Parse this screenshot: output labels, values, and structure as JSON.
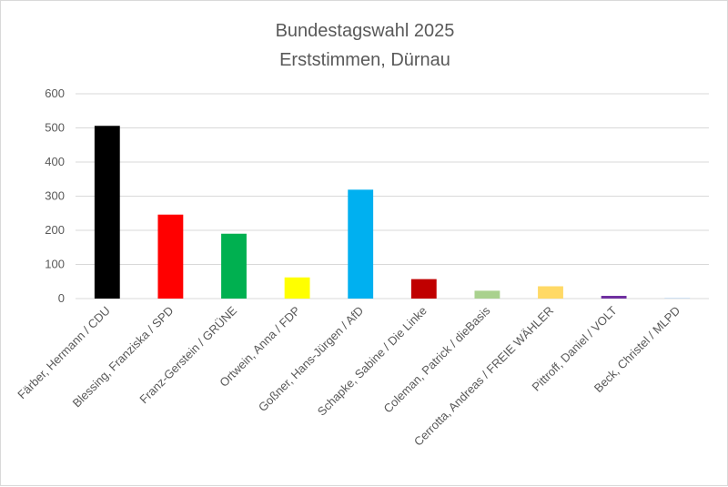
{
  "chart_data": {
    "type": "bar",
    "title": "Bundestagswahl 2025",
    "subtitle": "Erststimmen, Dürnau",
    "xlabel": "",
    "ylabel": "",
    "ylim": [
      0,
      600
    ],
    "yticks": [
      "0",
      "100",
      "200",
      "300",
      "400",
      "500",
      "600"
    ],
    "grid": true,
    "legend": "none",
    "categories": [
      "Färber, Hermann / CDU",
      "Blessing, Franziska / SPD",
      "Franz-Gerstein / GRÜNE",
      "Ortwein, Anna / FDP",
      "Goßner, Hans-Jürgen / AfD",
      "Schapke, Sabine / Die Linke",
      "Coleman, Patrick / dieBasis",
      "Cerrotta, Andreas / FREIE WÄHLER",
      "Pittroff, Daniel / VOLT",
      "Beck, Christel / MLPD"
    ],
    "values": [
      506,
      246,
      190,
      62,
      319,
      57,
      23,
      36,
      8,
      2
    ],
    "colors": [
      "#000000",
      "#ff0000",
      "#00b050",
      "#ffff00",
      "#00b0f0",
      "#c00000",
      "#a9d18e",
      "#ffd966",
      "#7030a0",
      "#bdd7ee"
    ]
  }
}
